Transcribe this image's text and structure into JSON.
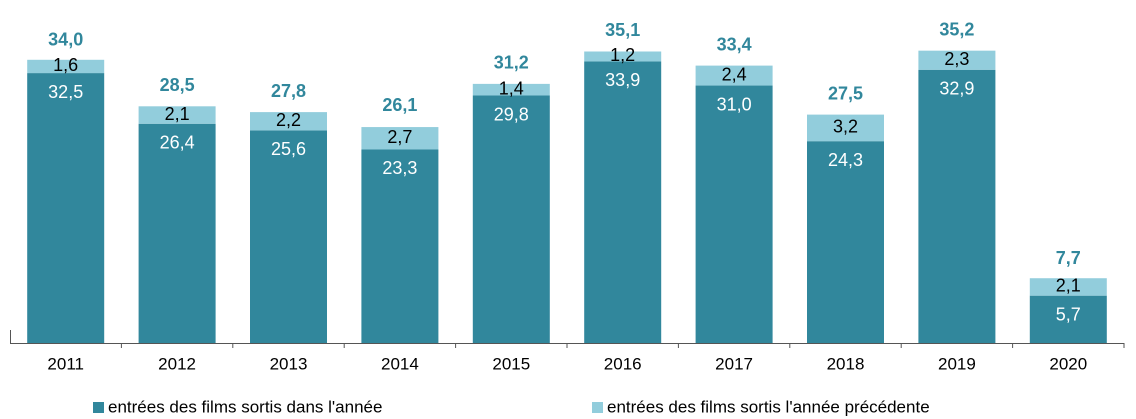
{
  "chart_data": {
    "type": "stacked_bar",
    "categories": [
      "2011",
      "2012",
      "2013",
      "2014",
      "2015",
      "2016",
      "2017",
      "2018",
      "2019",
      "2020"
    ],
    "series": [
      {
        "name": "entrées des films sortis dans l'année",
        "color": "#31879c",
        "values": [
          32.5,
          26.4,
          25.6,
          23.3,
          29.8,
          33.9,
          31.0,
          24.3,
          32.9,
          5.7
        ],
        "value_labels": [
          "32,5",
          "26,4",
          "25,6",
          "23,3",
          "29,8",
          "33,9",
          "31,0",
          "24,3",
          "32,9",
          "5,7"
        ]
      },
      {
        "name": "entrées des films sortis l'année précédente",
        "color": "#92cddc",
        "values": [
          1.6,
          2.1,
          2.2,
          2.7,
          1.4,
          1.2,
          2.4,
          3.2,
          2.3,
          2.1
        ],
        "value_labels": [
          "1,6",
          "2,1",
          "2,2",
          "2,7",
          "1,4",
          "1,2",
          "2,4",
          "3,2",
          "2,3",
          "2,1"
        ]
      }
    ],
    "totals": [
      34.0,
      28.5,
      27.8,
      26.1,
      31.2,
      35.1,
      33.4,
      27.5,
      35.2,
      7.7
    ],
    "total_labels": [
      "34,0",
      "28,5",
      "27,8",
      "26,1",
      "31,2",
      "35,1",
      "33,4",
      "27,5",
      "35,2",
      "7,7"
    ],
    "ylim": [
      0,
      41.3
    ],
    "legend": "bottom"
  }
}
